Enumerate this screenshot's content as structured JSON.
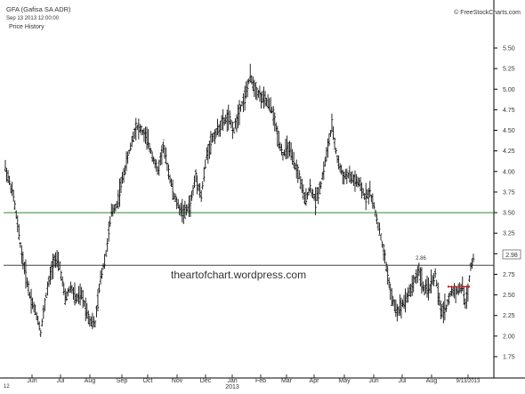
{
  "chart_data": {
    "type": "bar",
    "style": "ohlc",
    "title": "GFA (Gafisa SA ADR)",
    "date_line": "Sep 13 2013 12:00:00",
    "subtitle": "Price History",
    "source": "© FreeStockCharts.com",
    "watermark": "theartofchart.wordpress.com",
    "ylim": [
      1.5,
      5.6
    ],
    "y_ticks": [
      "5.50",
      "5.25",
      "5.00",
      "4.75",
      "4.50",
      "4.25",
      "4.00",
      "3.75",
      "3.50",
      "3.25",
      "3.00",
      "2.75",
      "2.50",
      "2.25",
      "2.00",
      "1.75"
    ],
    "x_tick_labels": [
      "Jun",
      "Jul",
      "Aug",
      "Sep",
      "Oct",
      "Nov",
      "Dec",
      "Jan",
      "Feb",
      "Mar",
      "Apr",
      "May",
      "Jun",
      "Jul",
      "Aug",
      "9/13/2013"
    ],
    "year_label": "2013",
    "corner_label": "12",
    "last_price": "2.98",
    "annotation_high": "2.86",
    "horizontal_lines": [
      {
        "value": 3.5,
        "color": "#2e8b2e"
      },
      {
        "value": 2.86,
        "color": "#444444"
      }
    ],
    "red_segment_value": 2.6,
    "price_path": [
      [
        0,
        4.05
      ],
      [
        3,
        3.7
      ],
      [
        6,
        3.0
      ],
      [
        9,
        2.5
      ],
      [
        12,
        2.2
      ],
      [
        13,
        2.05
      ],
      [
        15,
        2.5
      ],
      [
        18,
        2.95
      ],
      [
        20,
        2.85
      ],
      [
        22,
        2.45
      ],
      [
        24,
        2.6
      ],
      [
        26,
        2.45
      ],
      [
        28,
        2.5
      ],
      [
        31,
        2.2
      ],
      [
        33,
        2.15
      ],
      [
        35,
        2.7
      ],
      [
        37,
        3.0
      ],
      [
        39,
        3.5
      ],
      [
        41,
        3.6
      ],
      [
        43,
        3.9
      ],
      [
        46,
        4.3
      ],
      [
        48,
        4.55
      ],
      [
        50,
        4.5
      ],
      [
        52,
        4.4
      ],
      [
        54,
        4.2
      ],
      [
        56,
        4.0
      ],
      [
        58,
        4.3
      ],
      [
        60,
        4.0
      ],
      [
        62,
        3.7
      ],
      [
        64,
        3.55
      ],
      [
        66,
        3.5
      ],
      [
        68,
        3.6
      ],
      [
        70,
        3.95
      ],
      [
        72,
        3.7
      ],
      [
        74,
        4.2
      ],
      [
        76,
        4.4
      ],
      [
        78,
        4.5
      ],
      [
        80,
        4.6
      ],
      [
        82,
        4.65
      ],
      [
        84,
        4.5
      ],
      [
        86,
        4.75
      ],
      [
        88,
        4.9
      ],
      [
        90,
        5.15
      ],
      [
        92,
        5.0
      ],
      [
        94,
        4.9
      ],
      [
        96,
        4.85
      ],
      [
        98,
        4.75
      ],
      [
        100,
        4.45
      ],
      [
        102,
        4.2
      ],
      [
        104,
        4.3
      ],
      [
        106,
        4.1
      ],
      [
        108,
        3.95
      ],
      [
        110,
        3.65
      ],
      [
        112,
        3.8
      ],
      [
        114,
        3.65
      ],
      [
        116,
        3.85
      ],
      [
        118,
        4.2
      ],
      [
        120,
        4.55
      ],
      [
        122,
        4.15
      ],
      [
        124,
        3.95
      ],
      [
        126,
        3.95
      ],
      [
        128,
        3.9
      ],
      [
        130,
        3.85
      ],
      [
        132,
        3.7
      ],
      [
        134,
        3.75
      ],
      [
        136,
        3.5
      ],
      [
        138,
        3.2
      ],
      [
        140,
        2.85
      ],
      [
        142,
        2.45
      ],
      [
        144,
        2.3
      ],
      [
        146,
        2.4
      ],
      [
        148,
        2.5
      ],
      [
        150,
        2.65
      ],
      [
        152,
        2.8
      ],
      [
        154,
        2.55
      ],
      [
        156,
        2.6
      ],
      [
        158,
        2.75
      ],
      [
        160,
        2.3
      ],
      [
        162,
        2.35
      ],
      [
        164,
        2.55
      ],
      [
        166,
        2.55
      ],
      [
        168,
        2.6
      ],
      [
        169,
        2.4
      ],
      [
        170,
        2.55
      ],
      [
        171,
        2.85
      ],
      [
        172,
        2.95
      ]
    ]
  }
}
